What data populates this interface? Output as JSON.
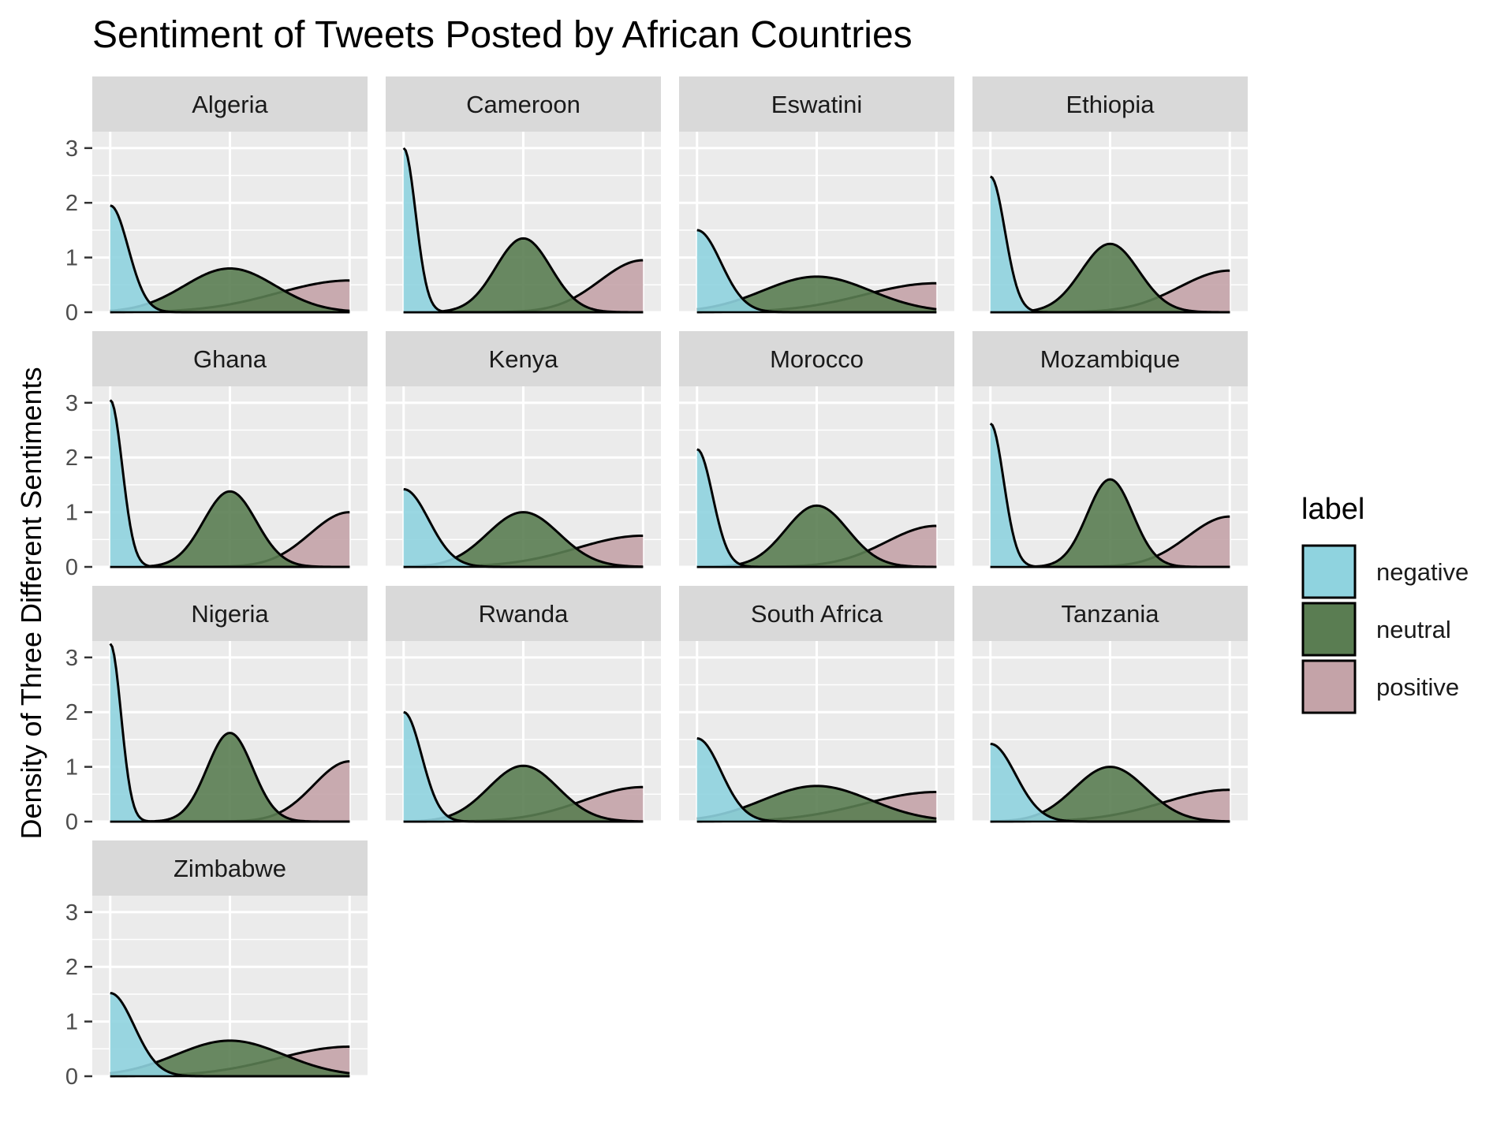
{
  "chart_data": {
    "type": "area",
    "title": "Sentiment of Tweets Posted by African Countries",
    "xlabel": "",
    "ylabel": "Density of Three Different Sentiments",
    "ylim": [
      0,
      3.3
    ],
    "yticks": [
      0,
      1,
      2,
      3
    ],
    "xlim": [
      -1.15,
      1.15
    ],
    "grid": true,
    "legend": {
      "title": "label",
      "placement": "right",
      "entries": [
        {
          "name": "negative",
          "color": "#8fd3df"
        },
        {
          "name": "neutral",
          "color": "#5a7d52"
        },
        {
          "name": "positive",
          "color": "#c4a3a8"
        }
      ]
    },
    "facet_layout": {
      "columns": 4,
      "rows": 4
    },
    "facets": [
      {
        "country": "Algeria",
        "series": {
          "negative": {
            "peak": 1.95,
            "sd": 0.15
          },
          "neutral": {
            "peak": 0.8,
            "sd": 0.38
          },
          "positive": {
            "peak": 0.58,
            "sd": 0.6
          }
        }
      },
      {
        "country": "Cameroon",
        "series": {
          "negative": {
            "peak": 3.0,
            "sd": 0.1
          },
          "neutral": {
            "peak": 1.35,
            "sd": 0.23
          },
          "positive": {
            "peak": 0.95,
            "sd": 0.36
          }
        }
      },
      {
        "country": "Eswatini",
        "series": {
          "negative": {
            "peak": 1.5,
            "sd": 0.2
          },
          "neutral": {
            "peak": 0.65,
            "sd": 0.45
          },
          "positive": {
            "peak": 0.53,
            "sd": 0.6
          }
        }
      },
      {
        "country": "Ethiopia",
        "series": {
          "negative": {
            "peak": 2.48,
            "sd": 0.12
          },
          "neutral": {
            "peak": 1.25,
            "sd": 0.24
          },
          "positive": {
            "peak": 0.76,
            "sd": 0.42
          }
        }
      },
      {
        "country": "Ghana",
        "series": {
          "negative": {
            "peak": 3.05,
            "sd": 0.1
          },
          "neutral": {
            "peak": 1.38,
            "sd": 0.22
          },
          "positive": {
            "peak": 1.0,
            "sd": 0.33
          }
        }
      },
      {
        "country": "Kenya",
        "series": {
          "negative": {
            "peak": 1.42,
            "sd": 0.21
          },
          "neutral": {
            "peak": 1.0,
            "sd": 0.3
          },
          "positive": {
            "peak": 0.57,
            "sd": 0.55
          }
        }
      },
      {
        "country": "Morocco",
        "series": {
          "negative": {
            "peak": 2.15,
            "sd": 0.13
          },
          "neutral": {
            "peak": 1.12,
            "sd": 0.26
          },
          "positive": {
            "peak": 0.75,
            "sd": 0.42
          }
        }
      },
      {
        "country": "Mozambique",
        "series": {
          "negative": {
            "peak": 2.62,
            "sd": 0.11
          },
          "neutral": {
            "peak": 1.6,
            "sd": 0.19
          },
          "positive": {
            "peak": 0.92,
            "sd": 0.35
          }
        }
      },
      {
        "country": "Nigeria",
        "series": {
          "negative": {
            "peak": 3.25,
            "sd": 0.09
          },
          "neutral": {
            "peak": 1.62,
            "sd": 0.19
          },
          "positive": {
            "peak": 1.1,
            "sd": 0.3
          }
        }
      },
      {
        "country": "Rwanda",
        "series": {
          "negative": {
            "peak": 2.0,
            "sd": 0.15
          },
          "neutral": {
            "peak": 1.02,
            "sd": 0.29
          },
          "positive": {
            "peak": 0.63,
            "sd": 0.5
          }
        }
      },
      {
        "country": "South Africa",
        "series": {
          "negative": {
            "peak": 1.52,
            "sd": 0.2
          },
          "neutral": {
            "peak": 0.65,
            "sd": 0.45
          },
          "positive": {
            "peak": 0.54,
            "sd": 0.6
          }
        }
      },
      {
        "country": "Tanzania",
        "series": {
          "negative": {
            "peak": 1.42,
            "sd": 0.21
          },
          "neutral": {
            "peak": 1.0,
            "sd": 0.3
          },
          "positive": {
            "peak": 0.58,
            "sd": 0.55
          }
        }
      },
      {
        "country": "Zimbabwe",
        "series": {
          "negative": {
            "peak": 1.52,
            "sd": 0.2
          },
          "neutral": {
            "peak": 0.65,
            "sd": 0.45
          },
          "positive": {
            "peak": 0.54,
            "sd": 0.6
          }
        }
      }
    ]
  }
}
